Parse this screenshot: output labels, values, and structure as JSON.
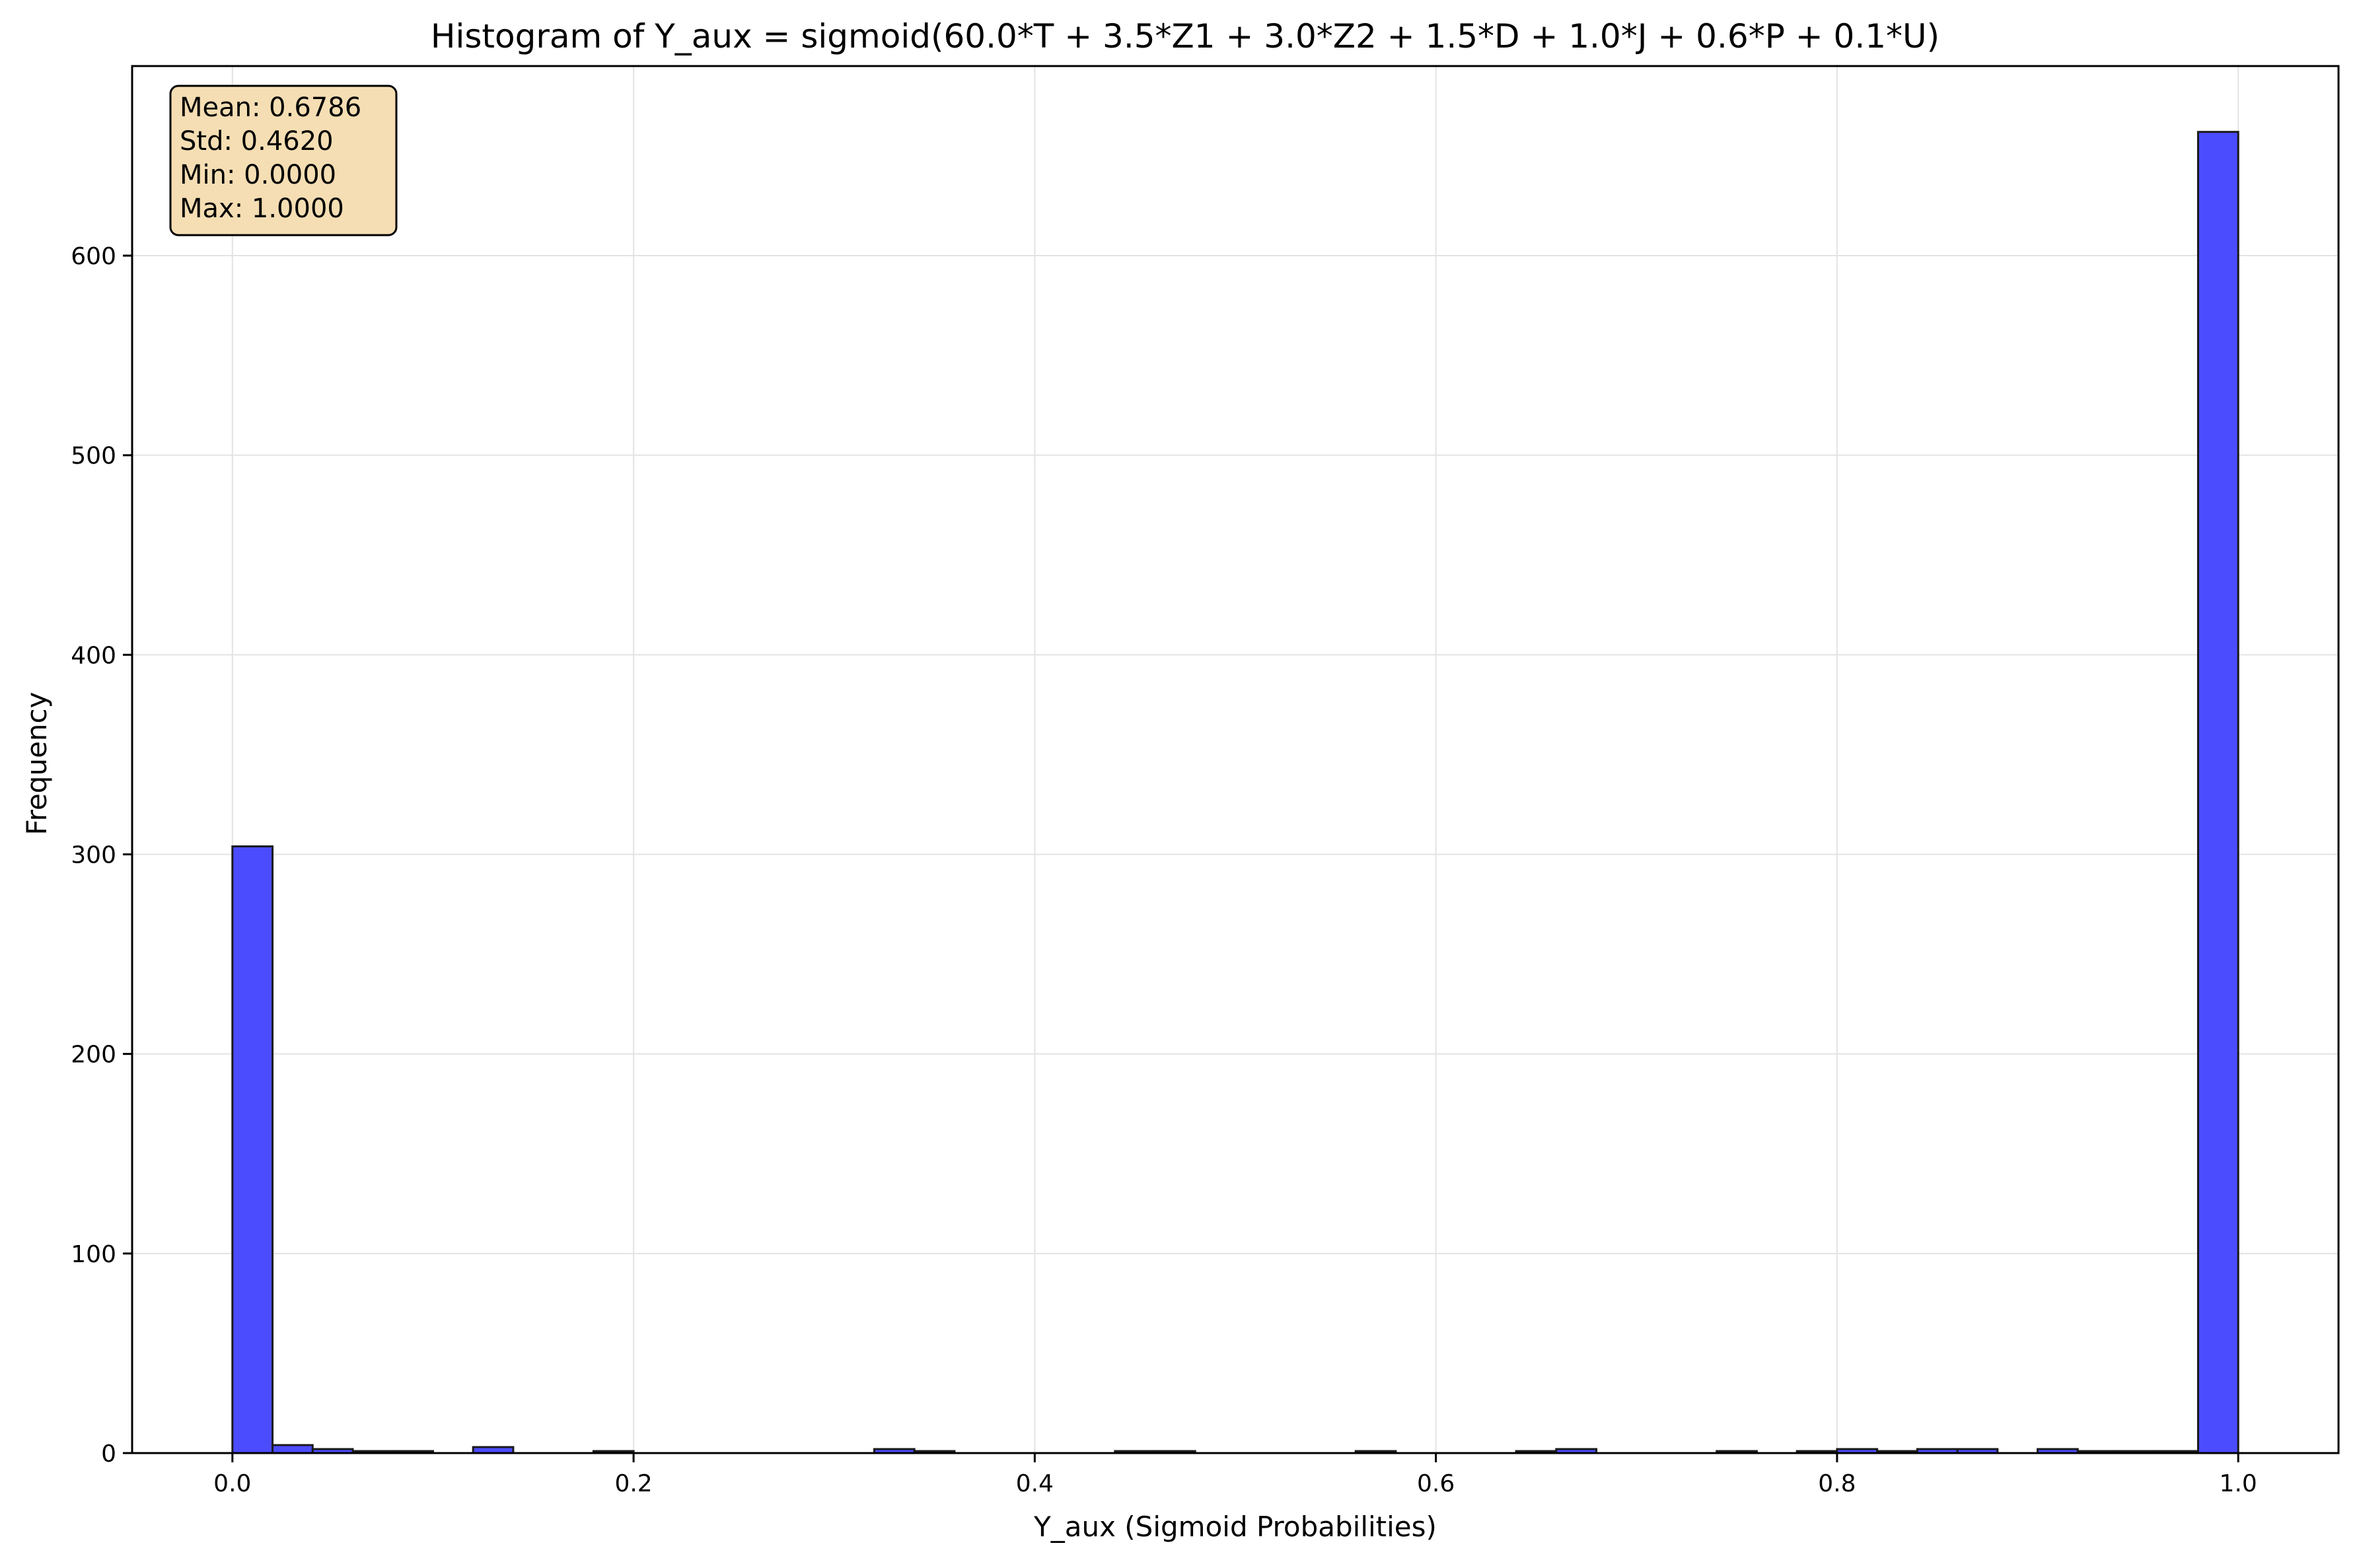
{
  "chart_data": {
    "type": "bar",
    "title": "Histogram of Y_aux = sigmoid(60.0*T + 3.5*Z1 + 3.0*Z2 + 1.5*D + 1.0*J + 0.6*P + 0.1*U)",
    "xlabel": "Y_aux (Sigmoid Probabilities)",
    "ylabel": "Frequency",
    "xlim": [
      -0.05,
      1.05
    ],
    "ylim": [
      0,
      695
    ],
    "xticks": [
      "0.0",
      "0.2",
      "0.4",
      "0.6",
      "0.8",
      "1.0"
    ],
    "xtick_values": [
      0.0,
      0.2,
      0.4,
      0.6,
      0.8,
      1.0
    ],
    "yticks": [
      "0",
      "100",
      "200",
      "300",
      "400",
      "500",
      "600"
    ],
    "ytick_values": [
      0,
      100,
      200,
      300,
      400,
      500,
      600
    ],
    "grid": true,
    "bin_edges": [
      0.0,
      0.02,
      0.04,
      0.06,
      0.08,
      0.1,
      0.12,
      0.14,
      0.16,
      0.18,
      0.2,
      0.22,
      0.24,
      0.26,
      0.28,
      0.3,
      0.32,
      0.34,
      0.36,
      0.38,
      0.4,
      0.42,
      0.44,
      0.46,
      0.48,
      0.5,
      0.52,
      0.54,
      0.56,
      0.58,
      0.6,
      0.62,
      0.64,
      0.66,
      0.68,
      0.7,
      0.72,
      0.74,
      0.76,
      0.78,
      0.8,
      0.82,
      0.84,
      0.86,
      0.88,
      0.9,
      0.92,
      0.94,
      0.96,
      0.98,
      1.0
    ],
    "counts": [
      304,
      4,
      2,
      1,
      1,
      0,
      3,
      0,
      0,
      1,
      0,
      0,
      0,
      0,
      0,
      0,
      2,
      1,
      0,
      0,
      0,
      0,
      1,
      1,
      0,
      0,
      0,
      0,
      1,
      0,
      0,
      0,
      1,
      2,
      0,
      0,
      0,
      1,
      0,
      1,
      2,
      1,
      2,
      2,
      0,
      2,
      1,
      1,
      1,
      662
    ],
    "bar_color": "#4c4cff",
    "edge_color": "#1a1a1a",
    "stats_box": {
      "lines": [
        "Mean: 0.6786",
        "Std: 0.4620",
        "Min: 0.0000",
        "Max: 1.0000"
      ],
      "background": "#f5deb3",
      "placement": "top-left"
    }
  }
}
